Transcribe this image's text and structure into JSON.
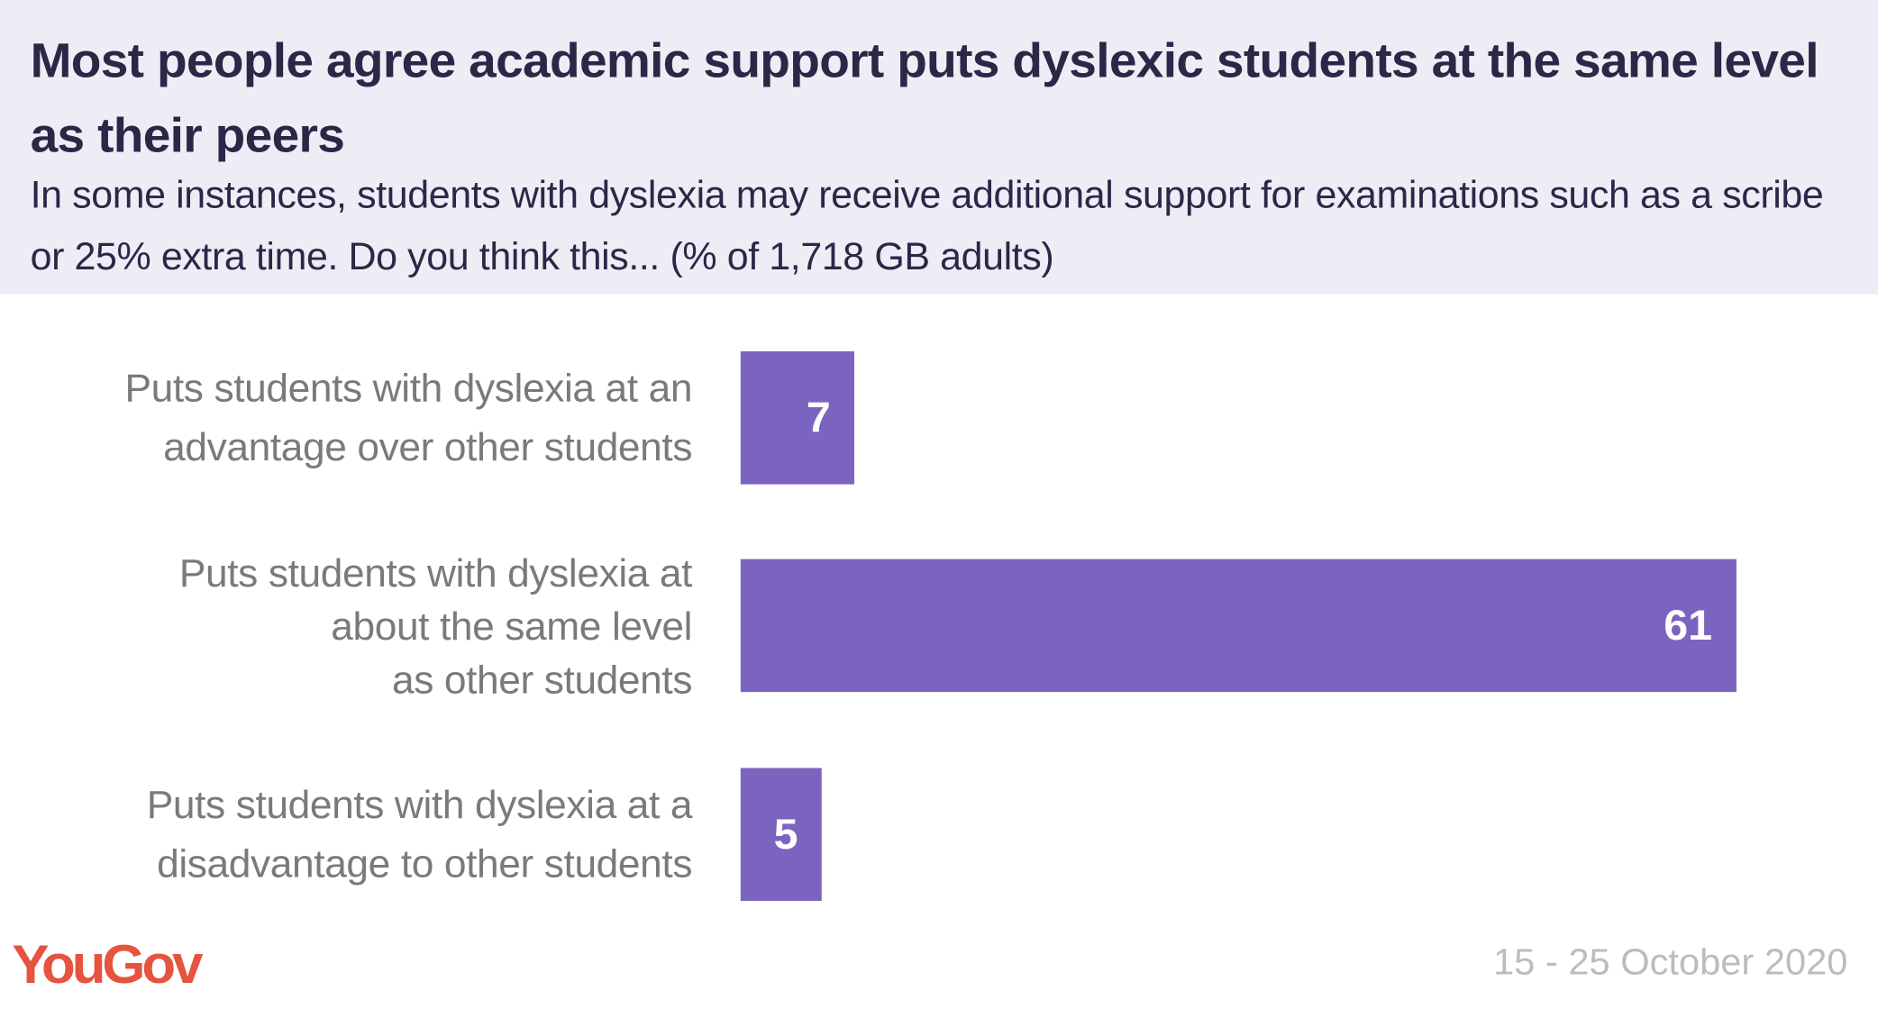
{
  "chart_data": {
    "type": "bar",
    "orientation": "horizontal",
    "title": "Most people agree academic support puts dyslexic students at the same level as their peers",
    "subtitle": "In some instances, students with dyslexia may receive additional support for examinations such as a scribe or 25% extra time. Do you think this... (% of 1,718 GB adults)",
    "categories": [
      "Puts students with dyslexia at an\nadvantage over other students",
      "Puts students with dyslexia at\nabout the same level\nas other students",
      "Puts students with dyslexia at a\ndisadvantage to other students"
    ],
    "values": [
      7,
      61,
      5
    ],
    "data_labels": [
      "7",
      "61",
      "5"
    ],
    "bar_color": "#7b64c0",
    "grid": false,
    "xlim": [
      0,
      61
    ]
  },
  "footer": {
    "logo": "YouGov",
    "date": "15 - 25 October 2020",
    "logo_color": "#e6533e"
  }
}
